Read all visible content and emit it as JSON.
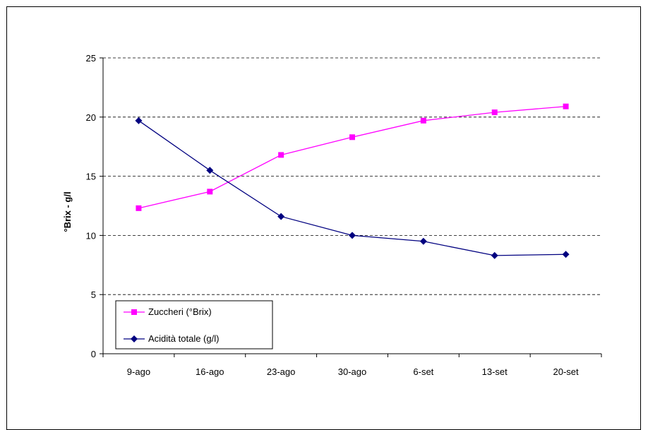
{
  "chart_data": {
    "type": "line",
    "title": "",
    "xlabel": "",
    "ylabel": "°Brix - g/l",
    "categories": [
      "9-ago",
      "16-ago",
      "23-ago",
      "30-ago",
      "6-set",
      "13-set",
      "20-set"
    ],
    "ylim": [
      0,
      25
    ],
    "yticks": [
      "0",
      "5",
      "10",
      "15",
      "20",
      "25"
    ],
    "grid": "horizontal dashed",
    "legend_position": "bottom-left",
    "series": [
      {
        "name": "Zuccheri (°Brix)",
        "values": [
          12.3,
          13.7,
          16.8,
          18.3,
          19.7,
          20.4,
          20.9
        ],
        "color": "#ff00ff",
        "marker": "square"
      },
      {
        "name": "Acidità totale (g/l)",
        "values": [
          19.7,
          15.5,
          11.6,
          10.0,
          9.5,
          8.3,
          8.4
        ],
        "color": "#000080",
        "marker": "diamond"
      }
    ]
  }
}
